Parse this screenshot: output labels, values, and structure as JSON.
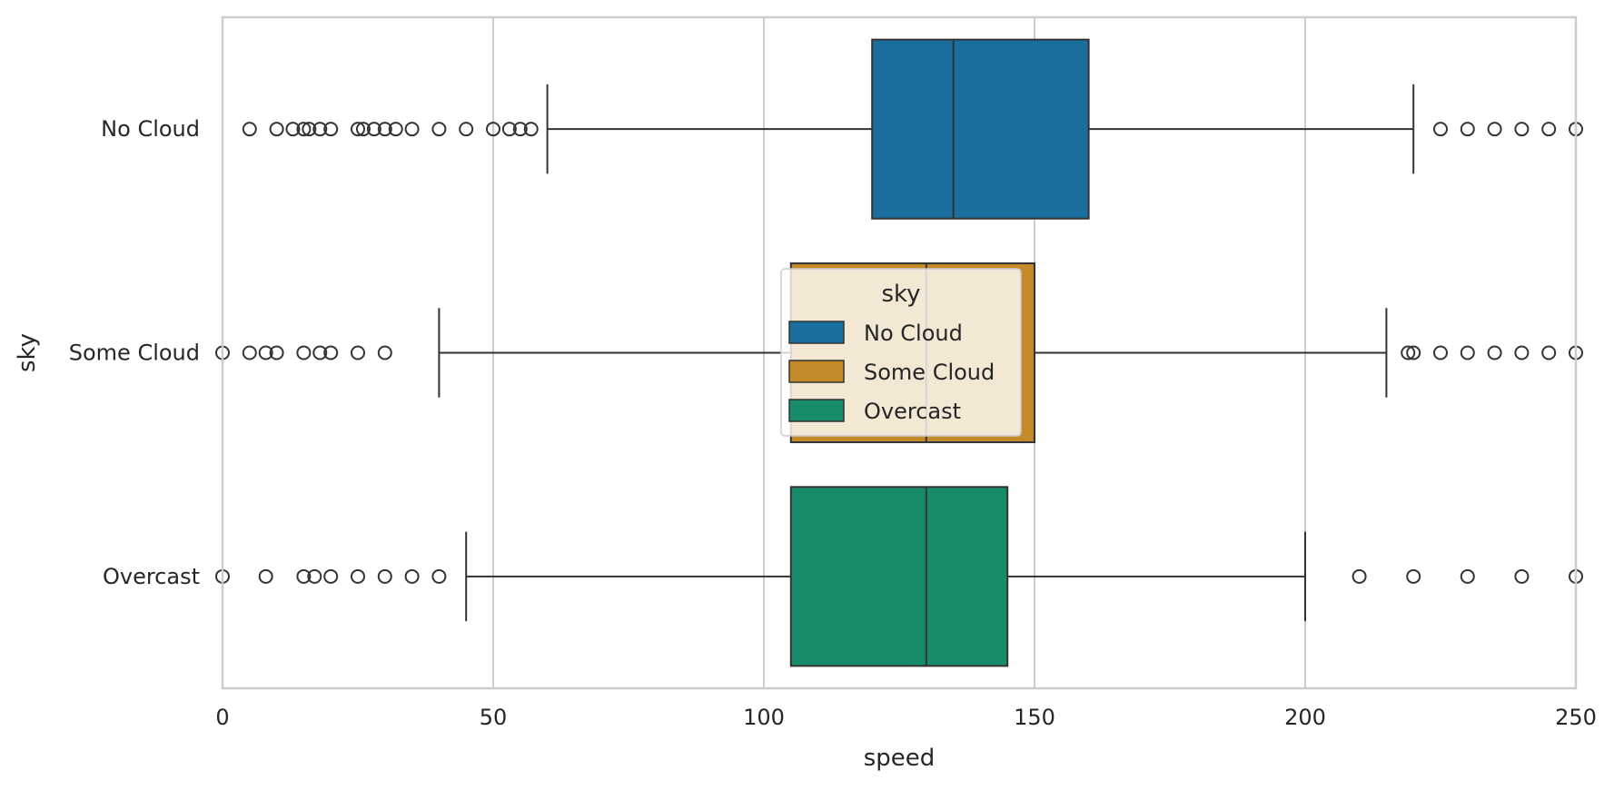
{
  "chart_data": {
    "type": "boxplot",
    "orientation": "horizontal",
    "xlabel": "speed",
    "ylabel": "sky",
    "xlim": [
      0,
      250
    ],
    "x_ticks": [
      0,
      50,
      100,
      150,
      200,
      250
    ],
    "x_tick_labels": [
      "0",
      "50",
      "100",
      "150",
      "200",
      "250"
    ],
    "grid": "x-only",
    "categories": [
      "No Cloud",
      "Some Cloud",
      "Overcast"
    ],
    "series": [
      {
        "name": "No Cloud",
        "color": "#1a6f9f",
        "q1": 120,
        "median": 135,
        "q3": 160,
        "whisker_low": 60,
        "whisker_high": 220,
        "outliers": [
          5,
          10,
          13,
          15,
          16,
          18,
          20,
          25,
          26,
          28,
          30,
          32,
          35,
          40,
          45,
          50,
          53,
          55,
          57,
          225,
          230,
          235,
          240,
          245,
          250
        ]
      },
      {
        "name": "Some Cloud",
        "color": "#c48a2a",
        "q1": 105,
        "median": 130,
        "q3": 150,
        "whisker_low": 40,
        "whisker_high": 215,
        "outliers": [
          0,
          5,
          8,
          10,
          15,
          18,
          20,
          25,
          30,
          219,
          220,
          225,
          230,
          235,
          240,
          245,
          250
        ]
      },
      {
        "name": "Overcast",
        "color": "#178c6a",
        "q1": 105,
        "median": 130,
        "q3": 145,
        "whisker_low": 45,
        "whisker_high": 200,
        "outliers": [
          0,
          8,
          15,
          17,
          20,
          25,
          30,
          35,
          40,
          210,
          220,
          230,
          240,
          250
        ]
      }
    ],
    "legend": {
      "title": "sky",
      "placement": "center",
      "entries": [
        "No Cloud",
        "Some Cloud",
        "Overcast"
      ]
    }
  }
}
